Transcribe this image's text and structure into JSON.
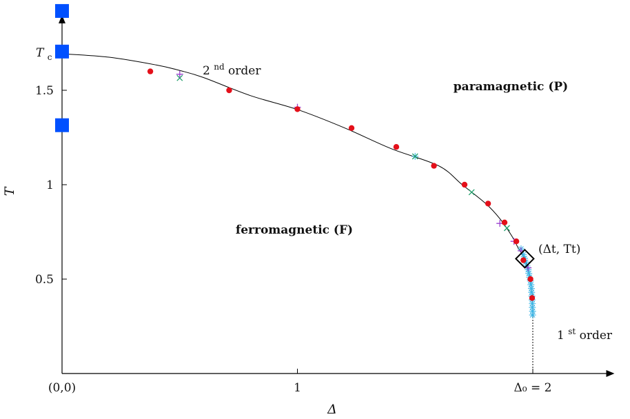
{
  "chart_data": {
    "type": "scatter",
    "xlabel": "Δ",
    "ylabel": "T",
    "xlim": [
      0,
      2.3
    ],
    "ylim": [
      0,
      1.92
    ],
    "x_tick_labels": [
      {
        "x": 0,
        "label": "(0,0)"
      },
      {
        "x": 1,
        "label": "1"
      },
      {
        "x": 2,
        "label": "Δ₀ = 2"
      }
    ],
    "y_tick_labels": [
      {
        "y": 0.5,
        "label": "0.5"
      },
      {
        "y": 1,
        "label": "1"
      },
      {
        "y": 1.5,
        "label": "1.5"
      }
    ],
    "tc_label": "Tc",
    "tc_value": 1.693,
    "grid": false,
    "regions": {
      "ferro": "ferromagnetic (F)",
      "para": "paramagnetic (P)"
    },
    "annotations": {
      "second_order": "2nd order",
      "first_order": "1st order",
      "tricritical": "(Δt, Tt)"
    },
    "tricritical_point": {
      "x": 1.966,
      "y": 0.608
    },
    "delta0_line_x": 2,
    "boundary_curve": [
      [
        0,
        1.693
      ],
      [
        0.2,
        1.675
      ],
      [
        0.4,
        1.634
      ],
      [
        0.5,
        1.605
      ],
      [
        0.6,
        1.568
      ],
      [
        0.8,
        1.472
      ],
      [
        1.0,
        1.398
      ],
      [
        1.2,
        1.301
      ],
      [
        1.4,
        1.19
      ],
      [
        1.6,
        1.1
      ],
      [
        1.7,
        1.0
      ],
      [
        1.8,
        0.9
      ],
      [
        1.86,
        0.82
      ],
      [
        1.91,
        0.73
      ],
      [
        1.94,
        0.66
      ],
      [
        1.966,
        0.608
      ],
      [
        1.98,
        0.55
      ],
      [
        1.99,
        0.5
      ],
      [
        1.996,
        0.43
      ],
      [
        1.998,
        0.4
      ],
      [
        2.0,
        0.3
      ]
    ],
    "series": [
      {
        "marker": "circle",
        "color": "#e4101a",
        "points": [
          [
            0.375,
            1.6
          ],
          [
            0.71,
            1.5
          ],
          [
            1.0,
            1.4
          ],
          [
            1.23,
            1.3
          ],
          [
            1.42,
            1.2
          ],
          [
            1.58,
            1.1
          ],
          [
            1.71,
            1.0
          ],
          [
            1.81,
            0.9
          ],
          [
            1.88,
            0.8
          ],
          [
            1.93,
            0.7
          ],
          [
            1.96,
            0.6
          ],
          [
            1.99,
            0.5
          ],
          [
            1.997,
            0.4
          ]
        ]
      },
      {
        "marker": "plus",
        "color": "#9b3fcf",
        "points": [
          [
            0.5,
            1.585
          ],
          [
            1.0,
            1.41
          ],
          [
            1.86,
            0.795
          ],
          [
            1.92,
            0.7
          ],
          [
            1.95,
            0.65
          ],
          [
            1.98,
            0.56
          ]
        ]
      },
      {
        "marker": "x",
        "color": "#1f9e6a",
        "points": [
          [
            0.5,
            1.565
          ],
          [
            1.5,
            1.15
          ],
          [
            1.74,
            0.96
          ],
          [
            1.89,
            0.77
          ]
        ]
      },
      {
        "marker": "asterisk",
        "color": "#3fb6e6",
        "points": [
          [
            1.5,
            1.15
          ],
          [
            1.95,
            0.66
          ],
          [
            1.96,
            0.63
          ],
          [
            1.965,
            0.61
          ],
          [
            1.97,
            0.59
          ],
          [
            1.975,
            0.57
          ],
          [
            1.98,
            0.55
          ],
          [
            1.983,
            0.53
          ],
          [
            1.986,
            0.51
          ],
          [
            1.99,
            0.49
          ],
          [
            1.992,
            0.47
          ],
          [
            1.994,
            0.45
          ],
          [
            1.995,
            0.43
          ],
          [
            1.996,
            0.41
          ],
          [
            1.997,
            0.39
          ],
          [
            1.998,
            0.37
          ],
          [
            1.998,
            0.35
          ],
          [
            1.999,
            0.33
          ],
          [
            1.999,
            0.31
          ]
        ]
      },
      {
        "marker": "square",
        "color": "#0050ff",
        "points": [
          [
            0,
            1.92
          ],
          [
            0,
            1.705
          ],
          [
            0,
            1.315
          ]
        ]
      }
    ]
  }
}
